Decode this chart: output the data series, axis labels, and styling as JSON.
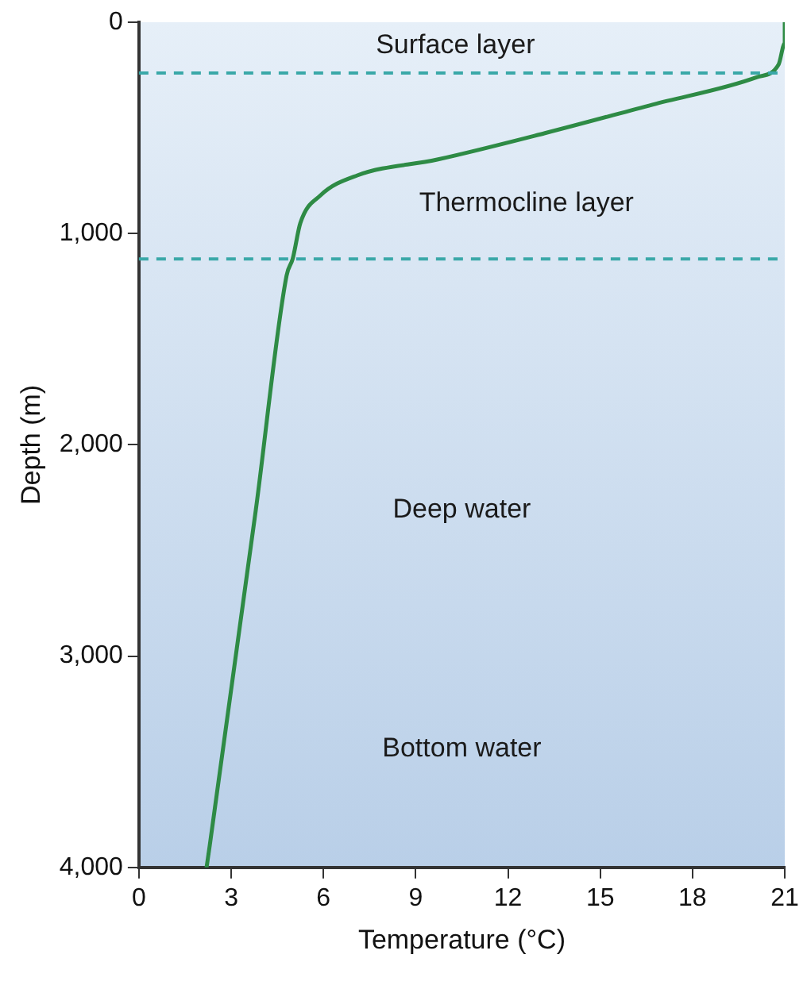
{
  "chart_data": {
    "type": "line",
    "xlabel": "Temperature (°C)",
    "ylabel": "Depth (m)",
    "xlim": [
      0,
      21
    ],
    "xticks": [
      0,
      3,
      6,
      9,
      12,
      15,
      18,
      21
    ],
    "ylim": [
      4000,
      0
    ],
    "yticks": [
      0,
      {
        "value": 1000,
        "label": "1,000"
      },
      {
        "value": 2000,
        "label": "2,000"
      },
      {
        "value": 3000,
        "label": "3,000"
      },
      {
        "value": 4000,
        "label": "4,000"
      }
    ],
    "series": [
      {
        "color": "#2e8b45",
        "x": [
          21.0,
          21.0,
          20.8,
          20.1,
          16.7,
          13.2,
          9.7,
          7.1,
          5.9,
          5.25,
          5.0,
          4.8,
          3.8,
          2.3,
          2.2
        ],
        "values": [
          0,
          100,
          200,
          260,
          390,
          525,
          650,
          725,
          820,
          950,
          1120,
          1200,
          2310,
          3900,
          4000
        ]
      }
    ],
    "ref_lines": [
      {
        "axis": "y",
        "value": 240,
        "color": "#3aa8a8",
        "line_style": "dashed"
      },
      {
        "axis": "y",
        "value": 1120,
        "color": "#3aa8a8",
        "line_style": "dashed"
      }
    ],
    "annotations": [
      "Surface layer",
      "Thermocline layer",
      "Deep water",
      "Bottom water"
    ],
    "grid": false,
    "legend": false,
    "marker": "none",
    "line_style": "solid"
  }
}
